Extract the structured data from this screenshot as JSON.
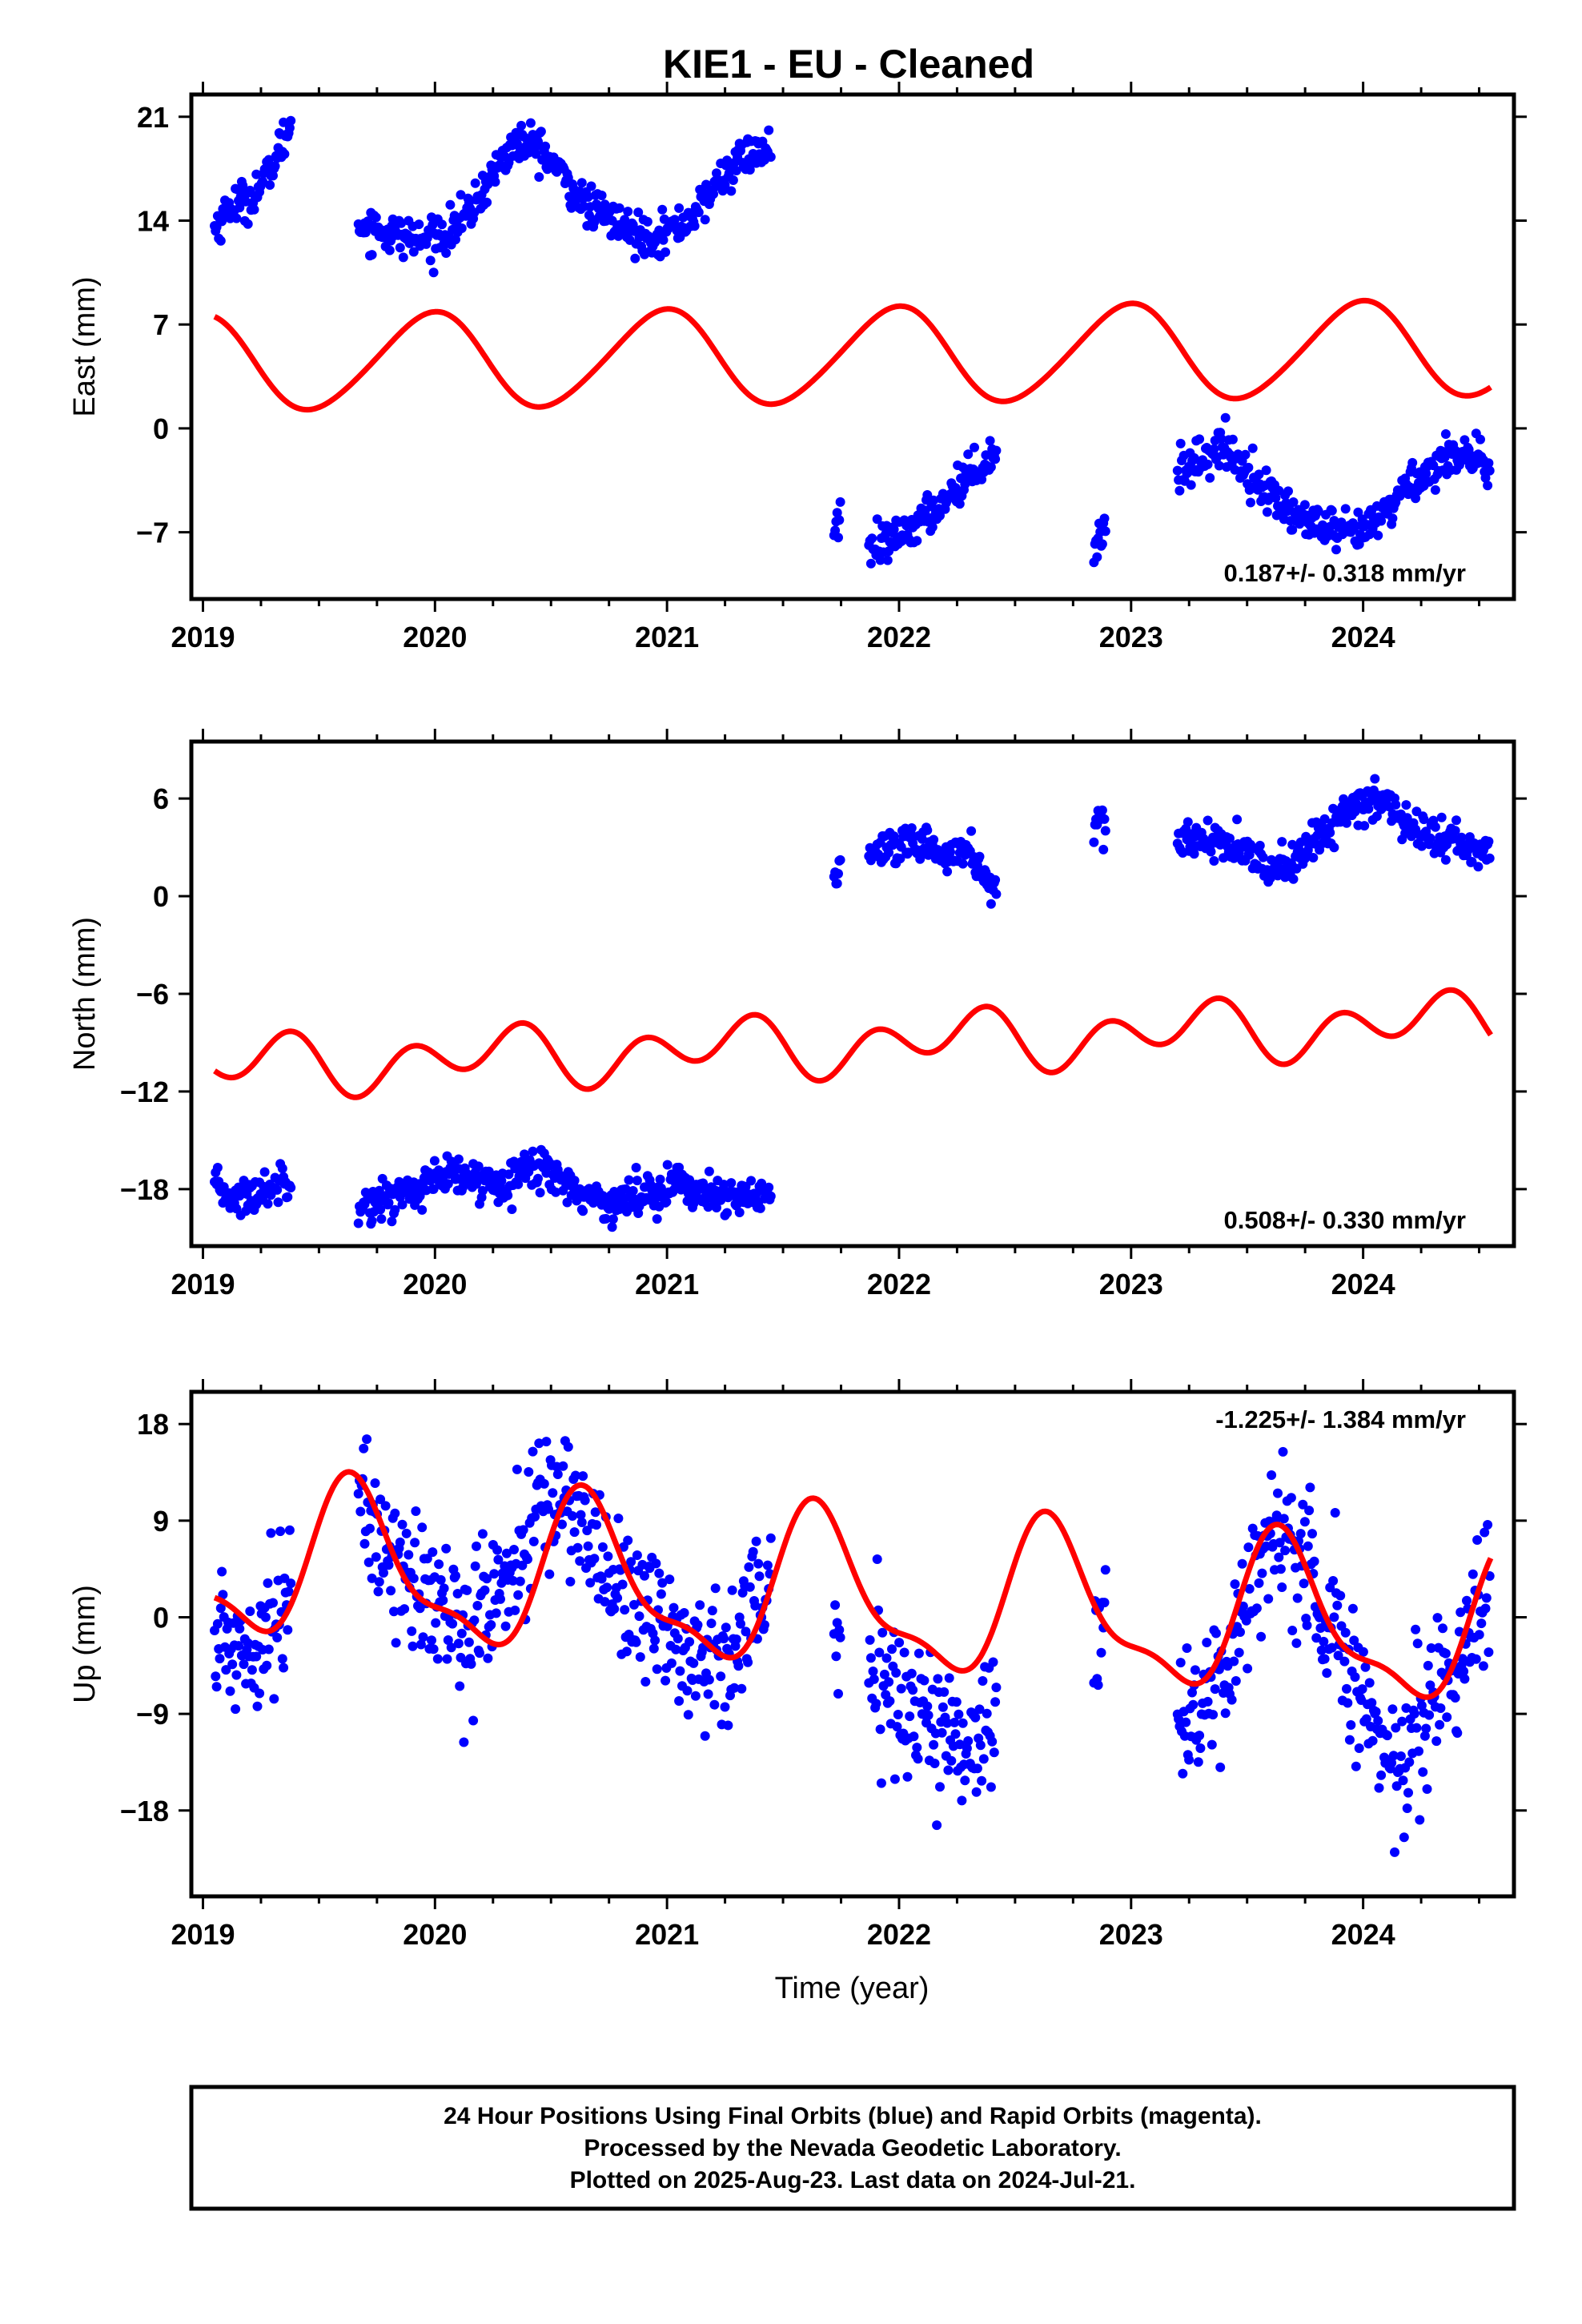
{
  "title": "KIE1  - EU - Cleaned",
  "x_axis_label": "Time (year)",
  "footer": {
    "line1": "24 Hour Positions Using Final Orbits (blue) and Rapid Orbits (magenta).",
    "line2": "Processed by the Nevada Geodetic Laboratory.",
    "line3": "Plotted on 2025-Aug-23. Last data on 2024-Jul-21."
  },
  "colors": {
    "data": "#0000ff",
    "model": "#ff0000",
    "frame": "#000000"
  },
  "chart_data": [
    {
      "type": "scatter",
      "component": "east",
      "ylabel": "East (mm)",
      "rate_text": "0.187+/- 0.318 mm/yr",
      "rate_position": "bottom-right",
      "xlim": [
        2018.95,
        2024.65
      ],
      "ylim": [
        -11.5,
        22.5
      ],
      "x_ticks": [
        2019,
        2020,
        2021,
        2022,
        2023,
        2024
      ],
      "x_tick_labels": [
        "2019",
        "2020",
        "2021",
        "2022",
        "2023",
        "2024"
      ],
      "y_ticks": [
        -7,
        0,
        7,
        14,
        21
      ],
      "y_tick_labels": [
        "−7",
        "0",
        "7",
        "14",
        "21"
      ],
      "grid": false,
      "data_segments": [
        {
          "x": [
            2019.05,
            2019.12,
            2019.2,
            2019.28,
            2019.35,
            2019.38
          ],
          "y": [
            13.5,
            15,
            15.5,
            17,
            19.5,
            20.5
          ]
        },
        {
          "x": [
            2019.67,
            2019.8,
            2019.95,
            2020.05,
            2020.15,
            2020.25,
            2020.35,
            2020.45,
            2020.55,
            2020.65,
            2020.75,
            2020.85,
            2020.95,
            2021.05,
            2021.15,
            2021.25,
            2021.35,
            2021.45
          ],
          "y": [
            13.8,
            13.2,
            12.6,
            13.2,
            14.5,
            17.2,
            19.3,
            19.0,
            17.0,
            15.0,
            14.2,
            13.2,
            13.0,
            13.6,
            15.0,
            17.2,
            18.5,
            18.7
          ]
        },
        {
          "x": [
            2021.72,
            2021.75
          ],
          "y": [
            -6.5,
            -6.0
          ]
        },
        {
          "x": [
            2021.87,
            2021.95,
            2022.05,
            2022.15,
            2022.25,
            2022.35,
            2022.42
          ],
          "y": [
            -8.4,
            -7.8,
            -6.8,
            -5.6,
            -3.8,
            -2.5,
            -1.6
          ]
        },
        {
          "x": [
            2022.84,
            2022.89
          ],
          "y": [
            -8.0,
            -6.6
          ]
        },
        {
          "x": [
            2023.2,
            2023.3,
            2023.4,
            2023.5,
            2023.6,
            2023.7,
            2023.8,
            2023.9,
            2024.0,
            2024.1,
            2024.2,
            2024.3,
            2024.4,
            2024.48,
            2024.55
          ],
          "y": [
            -3.0,
            -2.0,
            -1.2,
            -2.8,
            -4.5,
            -5.8,
            -6.6,
            -7.2,
            -7.0,
            -5.6,
            -3.6,
            -2.8,
            -1.4,
            -2.0,
            -3.6
          ]
        }
      ],
      "data_noise": 0.9,
      "model": {
        "x0": 2019.05,
        "x1": 2024.55,
        "offset": 4.88,
        "rate": 0.187,
        "annual_amp": 3.2,
        "annual_phase": 1.7,
        "semiannual_amp": 0.3,
        "semiannual_phase": 0.5
      }
    },
    {
      "type": "scatter",
      "component": "north",
      "ylabel": "North (mm)",
      "rate_text": "0.508+/- 0.330 mm/yr",
      "rate_position": "bottom-right",
      "xlim": [
        2018.95,
        2024.65
      ],
      "ylim": [
        -21.5,
        9.5
      ],
      "x_ticks": [
        2019,
        2020,
        2021,
        2022,
        2023,
        2024
      ],
      "x_tick_labels": [
        "2019",
        "2020",
        "2021",
        "2022",
        "2023",
        "2024"
      ],
      "y_ticks": [
        -18,
        -12,
        -6,
        0,
        6
      ],
      "y_tick_labels": [
        "−18",
        "−12",
        "−6",
        "0",
        "6"
      ],
      "grid": false,
      "data_segments": [
        {
          "x": [
            2019.05,
            2019.15,
            2019.25,
            2019.35,
            2019.38
          ],
          "y": [
            -18.0,
            -18.6,
            -18.2,
            -17.4,
            -17.0
          ]
        },
        {
          "x": [
            2019.67,
            2019.8,
            2019.95,
            2020.05,
            2020.15,
            2020.25,
            2020.35,
            2020.45,
            2020.55,
            2020.65,
            2020.75,
            2020.85,
            2020.95,
            2021.05,
            2021.15,
            2021.25,
            2021.35,
            2021.45
          ],
          "y": [
            -19.0,
            -18.6,
            -17.8,
            -17.2,
            -17.4,
            -17.6,
            -17.0,
            -16.6,
            -17.4,
            -18.4,
            -18.8,
            -18.6,
            -18.0,
            -17.6,
            -18.2,
            -18.8,
            -18.4,
            -18.2
          ]
        },
        {
          "x": [
            2021.72,
            2021.75
          ],
          "y": [
            1.0,
            2.0
          ]
        },
        {
          "x": [
            2021.87,
            2022.0,
            2022.1,
            2022.2,
            2022.3,
            2022.38,
            2022.42
          ],
          "y": [
            2.4,
            2.8,
            3.2,
            2.6,
            2.8,
            1.2,
            0.0
          ]
        },
        {
          "x": [
            2022.84,
            2022.89
          ],
          "y": [
            3.8,
            4.2
          ]
        },
        {
          "x": [
            2023.2,
            2023.3,
            2023.4,
            2023.5,
            2023.6,
            2023.7,
            2023.8,
            2023.9,
            2024.0,
            2024.1,
            2024.2,
            2024.3,
            2024.4,
            2024.48,
            2024.55
          ],
          "y": [
            3.4,
            3.6,
            3.2,
            2.4,
            1.8,
            2.0,
            3.6,
            4.8,
            5.6,
            5.8,
            4.4,
            3.6,
            3.4,
            2.8,
            2.4
          ]
        }
      ],
      "data_noise": 0.8,
      "model": {
        "x0": 2019.05,
        "x1": 2024.55,
        "offset": -9.1,
        "rate": 0.508,
        "annual_amp": 0.95,
        "annual_phase": 0.0,
        "semiannual_amp": 1.4,
        "semiannual_phase": 2.9
      }
    },
    {
      "type": "scatter",
      "component": "up",
      "ylabel": "Up (mm)",
      "rate_text": "-1.225+/- 1.384 mm/yr",
      "rate_position": "top-right",
      "xlim": [
        2018.95,
        2024.65
      ],
      "ylim": [
        -26,
        21
      ],
      "x_ticks": [
        2019,
        2020,
        2021,
        2022,
        2023,
        2024
      ],
      "x_tick_labels": [
        "2019",
        "2020",
        "2021",
        "2022",
        "2023",
        "2024"
      ],
      "y_ticks": [
        -18,
        -9,
        0,
        9,
        18
      ],
      "y_tick_labels": [
        "−18",
        "−9",
        "0",
        "9",
        "18"
      ],
      "grid": false,
      "data_segments": [
        {
          "x": [
            2019.05,
            2019.15,
            2019.25,
            2019.35,
            2019.38
          ],
          "y": [
            -2.0,
            -3.0,
            -1.0,
            2.0,
            3.0
          ]
        },
        {
          "x": [
            2019.67,
            2019.75,
            2019.85,
            2019.95,
            2020.05,
            2020.15,
            2020.25,
            2020.35,
            2020.45,
            2020.55,
            2020.65,
            2020.75,
            2020.85,
            2020.95,
            2021.05,
            2021.15,
            2021.25,
            2021.35,
            2021.45
          ],
          "y": [
            10.0,
            8.0,
            5.0,
            2.0,
            0.0,
            -1.0,
            2.0,
            5.0,
            10.0,
            12.0,
            8.0,
            4.0,
            2.0,
            0.0,
            -2.0,
            -5.0,
            -3.0,
            1.0,
            4.0
          ]
        },
        {
          "x": [
            2021.72,
            2021.75
          ],
          "y": [
            -3.0,
            -5.0
          ]
        },
        {
          "x": [
            2021.87,
            2022.0,
            2022.1,
            2022.2,
            2022.3,
            2022.38,
            2022.42
          ],
          "y": [
            -6.0,
            -7.0,
            -9.0,
            -11.0,
            -12.0,
            -10.0,
            -7.0
          ]
        },
        {
          "x": [
            2022.84,
            2022.89
          ],
          "y": [
            -1.0,
            2.0
          ]
        },
        {
          "x": [
            2023.2,
            2023.3,
            2023.4,
            2023.5,
            2023.6,
            2023.7,
            2023.8,
            2023.9,
            2024.0,
            2024.1,
            2024.2,
            2024.3,
            2024.4,
            2024.48,
            2024.55
          ],
          "y": [
            -10.0,
            -9.0,
            -6.0,
            2.0,
            8.0,
            6.0,
            3.0,
            -2.0,
            -8.0,
            -13.0,
            -12.0,
            -8.0,
            -4.0,
            0.0,
            4.0
          ]
        }
      ],
      "data_noise": 4.5,
      "model": {
        "x0": 2019.05,
        "x1": 2024.55,
        "offset": 1.9,
        "rate": -1.225,
        "annual_amp": 6.8,
        "annual_phase": 3.7,
        "semiannual_amp": 2.4,
        "semiannual_phase": 0.2
      }
    }
  ]
}
